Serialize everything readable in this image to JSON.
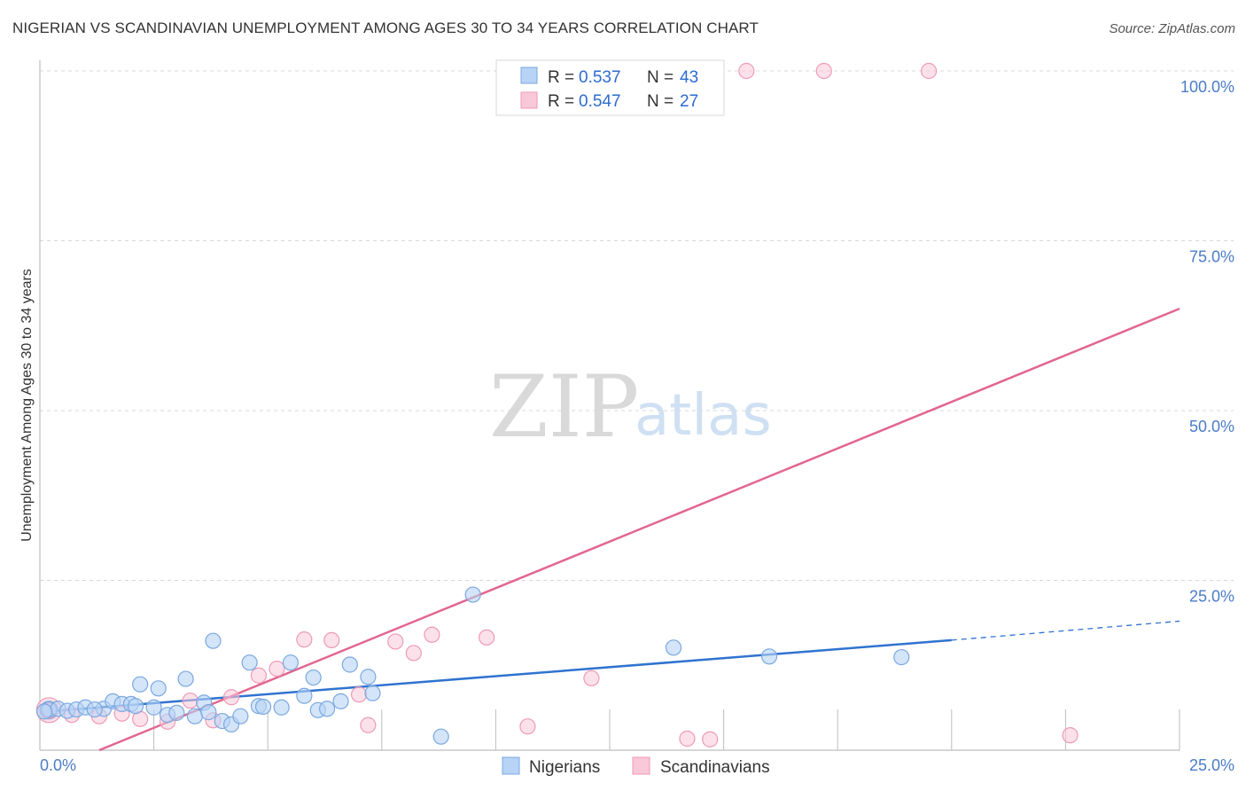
{
  "title": "NIGERIAN VS SCANDINAVIAN UNEMPLOYMENT AMONG AGES 30 TO 34 YEARS CORRELATION CHART",
  "source": "Source: ZipAtlas.com",
  "watermark": {
    "zip": "ZIP",
    "atlas": "atlas"
  },
  "colors": {
    "nigerians_fill": "#b7d3f5",
    "nigerians_stroke": "#7aa8e0",
    "nigerians_line": "#2f73d0",
    "scandinavians_fill": "#f9c8d8",
    "scandinavians_stroke": "#ee9ab6",
    "scandinavians_line": "#e2668f",
    "grid": "#d8d8d8",
    "axis_text": "#4a7cc7"
  },
  "legend_top": {
    "rows": [
      {
        "r_label": "R = ",
        "r_value": "0.537",
        "n_label": "N = ",
        "n_value": "43"
      },
      {
        "r_label": "R = ",
        "r_value": "0.547",
        "n_label": "N = ",
        "n_value": "27"
      }
    ]
  },
  "legend_bottom": [
    "Nigerians",
    "Scandinavians"
  ],
  "chart_data": {
    "type": "scatter",
    "title": "NIGERIAN VS SCANDINAVIAN UNEMPLOYMENT AMONG AGES 30 TO 34 YEARS CORRELATION CHART",
    "xlabel": "",
    "ylabel": "Unemployment Among Ages 30 to 34 years",
    "xlim": [
      0,
      25
    ],
    "ylim": [
      0,
      100
    ],
    "x_tick_labels": [
      "0.0%",
      "25.0%"
    ],
    "y_ticks": [
      {
        "value": 100,
        "label": "100.0%"
      },
      {
        "value": 75,
        "label": "75.0%"
      },
      {
        "value": 50,
        "label": "50.0%"
      },
      {
        "value": 25,
        "label": "25.0%"
      }
    ],
    "series": [
      {
        "name": "Nigerians",
        "R": 0.537,
        "N": 43,
        "trend": {
          "x0": 0.0,
          "y0": 5.6,
          "x1": 20.0,
          "y1": 16.2,
          "dash_to_x": 25.0,
          "dash_to_y": 19.0
        },
        "points": [
          {
            "x": 0.2,
            "y": 6.0
          },
          {
            "x": 0.4,
            "y": 6.1
          },
          {
            "x": 0.6,
            "y": 5.8
          },
          {
            "x": 0.8,
            "y": 6.0
          },
          {
            "x": 1.0,
            "y": 6.3
          },
          {
            "x": 1.4,
            "y": 6.1
          },
          {
            "x": 1.6,
            "y": 7.2
          },
          {
            "x": 1.8,
            "y": 6.8
          },
          {
            "x": 2.0,
            "y": 6.8
          },
          {
            "x": 2.2,
            "y": 9.7
          },
          {
            "x": 2.5,
            "y": 6.3
          },
          {
            "x": 2.6,
            "y": 9.1
          },
          {
            "x": 2.8,
            "y": 5.2
          },
          {
            "x": 3.2,
            "y": 10.5
          },
          {
            "x": 3.4,
            "y": 5.0
          },
          {
            "x": 3.6,
            "y": 7.0
          },
          {
            "x": 3.7,
            "y": 5.6
          },
          {
            "x": 3.8,
            "y": 16.1
          },
          {
            "x": 4.0,
            "y": 4.3
          },
          {
            "x": 4.2,
            "y": 3.8
          },
          {
            "x": 4.4,
            "y": 5.0
          },
          {
            "x": 4.6,
            "y": 12.9
          },
          {
            "x": 4.8,
            "y": 6.5
          },
          {
            "x": 4.9,
            "y": 6.4
          },
          {
            "x": 5.3,
            "y": 6.3
          },
          {
            "x": 5.5,
            "y": 12.9
          },
          {
            "x": 5.8,
            "y": 8.0
          },
          {
            "x": 6.0,
            "y": 10.7
          },
          {
            "x": 6.1,
            "y": 5.9
          },
          {
            "x": 6.3,
            "y": 6.1
          },
          {
            "x": 6.6,
            "y": 7.2
          },
          {
            "x": 6.8,
            "y": 12.6
          },
          {
            "x": 7.2,
            "y": 10.8
          },
          {
            "x": 7.3,
            "y": 8.4
          },
          {
            "x": 8.8,
            "y": 2.0
          },
          {
            "x": 9.5,
            "y": 22.9
          },
          {
            "x": 13.9,
            "y": 15.1
          },
          {
            "x": 16.0,
            "y": 13.8
          },
          {
            "x": 18.9,
            "y": 13.7
          },
          {
            "x": 0.1,
            "y": 5.7
          },
          {
            "x": 1.2,
            "y": 6.0
          },
          {
            "x": 2.1,
            "y": 6.5
          },
          {
            "x": 3.0,
            "y": 5.5
          }
        ]
      },
      {
        "name": "Scandinavians",
        "R": 0.547,
        "N": 27,
        "trend": {
          "x0": 1.3,
          "y0": 0.0,
          "x1": 25.0,
          "y1": 65.0
        },
        "points": [
          {
            "x": 0.2,
            "y": 5.8
          },
          {
            "x": 0.7,
            "y": 5.2
          },
          {
            "x": 1.3,
            "y": 5.0
          },
          {
            "x": 1.8,
            "y": 5.4
          },
          {
            "x": 2.2,
            "y": 4.6
          },
          {
            "x": 2.8,
            "y": 4.2
          },
          {
            "x": 3.3,
            "y": 7.3
          },
          {
            "x": 3.8,
            "y": 4.4
          },
          {
            "x": 4.2,
            "y": 7.8
          },
          {
            "x": 4.8,
            "y": 11.0
          },
          {
            "x": 5.2,
            "y": 12.0
          },
          {
            "x": 5.8,
            "y": 16.3
          },
          {
            "x": 6.4,
            "y": 16.2
          },
          {
            "x": 7.0,
            "y": 8.2
          },
          {
            "x": 7.2,
            "y": 3.7
          },
          {
            "x": 7.8,
            "y": 16.0
          },
          {
            "x": 8.2,
            "y": 14.3
          },
          {
            "x": 8.6,
            "y": 17.0
          },
          {
            "x": 9.8,
            "y": 16.6
          },
          {
            "x": 10.7,
            "y": 3.5
          },
          {
            "x": 12.1,
            "y": 10.6
          },
          {
            "x": 14.2,
            "y": 1.7
          },
          {
            "x": 14.7,
            "y": 1.6
          },
          {
            "x": 15.5,
            "y": 100.0
          },
          {
            "x": 17.2,
            "y": 100.0
          },
          {
            "x": 19.5,
            "y": 100.0
          },
          {
            "x": 22.6,
            "y": 2.2
          }
        ]
      }
    ]
  }
}
